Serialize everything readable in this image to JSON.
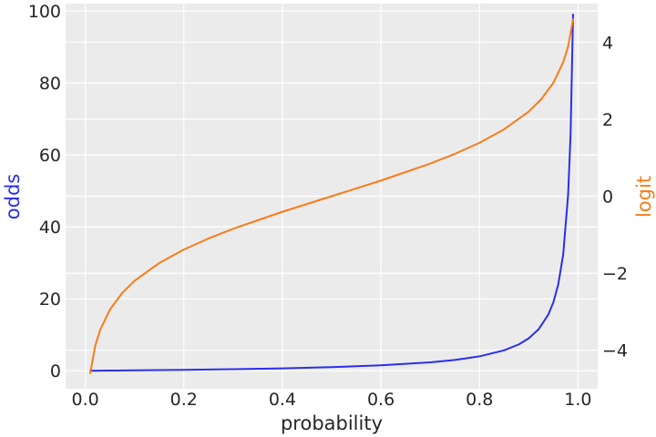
{
  "chart_data": {
    "type": "line",
    "xlabel": "probability",
    "ylabel_left": "odds",
    "ylabel_right": "logit",
    "xlim": [
      -0.04,
      1.04
    ],
    "ylim_left": [
      -5,
      102
    ],
    "ylim_right": [
      -5.0,
      5.0
    ],
    "x_ticks": [
      0.0,
      0.2,
      0.4,
      0.6,
      0.8,
      1.0
    ],
    "x_tick_labels": [
      "0.0",
      "0.2",
      "0.4",
      "0.6",
      "0.8",
      "1.0"
    ],
    "y_left_ticks": [
      0,
      20,
      40,
      60,
      80,
      100
    ],
    "y_left_tick_labels": [
      "0",
      "20",
      "40",
      "60",
      "80",
      "100"
    ],
    "y_right_ticks": [
      -4,
      -2,
      0,
      2,
      4
    ],
    "y_right_tick_labels": [
      "−4",
      "−2",
      "0",
      "2",
      "4"
    ],
    "grid": true,
    "background": "#ebebeb",
    "series": [
      {
        "name": "odds",
        "axis": "left",
        "color": "#2a2eec",
        "x": [
          0.01,
          0.05,
          0.1,
          0.2,
          0.3,
          0.4,
          0.5,
          0.6,
          0.7,
          0.75,
          0.8,
          0.85,
          0.88,
          0.9,
          0.92,
          0.94,
          0.95,
          0.96,
          0.97,
          0.98,
          0.985,
          0.99
        ],
        "values": [
          0.01,
          0.053,
          0.111,
          0.25,
          0.429,
          0.667,
          1.0,
          1.5,
          2.333,
          3.0,
          4.0,
          5.667,
          7.333,
          9.0,
          11.5,
          15.667,
          19.0,
          24.0,
          32.333,
          49.0,
          65.667,
          99.0
        ]
      },
      {
        "name": "logit",
        "axis": "right",
        "color": "#fa7c17",
        "x": [
          0.01,
          0.02,
          0.03,
          0.05,
          0.075,
          0.1,
          0.15,
          0.2,
          0.25,
          0.3,
          0.4,
          0.5,
          0.6,
          0.7,
          0.75,
          0.8,
          0.85,
          0.9,
          0.925,
          0.95,
          0.97,
          0.98,
          0.99
        ],
        "values": [
          -4.595,
          -3.892,
          -3.476,
          -2.944,
          -2.512,
          -2.197,
          -1.735,
          -1.386,
          -1.099,
          -0.847,
          -0.405,
          0.0,
          0.405,
          0.847,
          1.099,
          1.386,
          1.735,
          2.197,
          2.512,
          2.944,
          3.476,
          3.892,
          4.595
        ]
      }
    ]
  }
}
